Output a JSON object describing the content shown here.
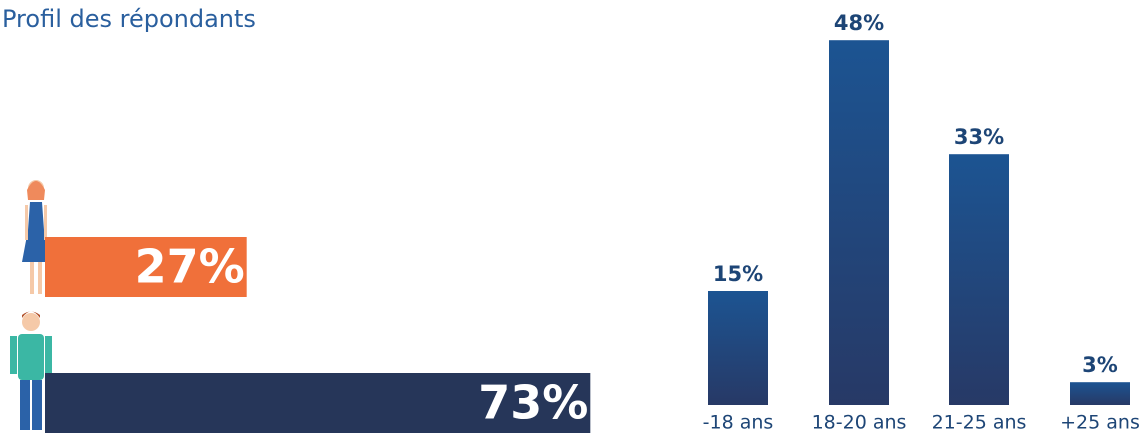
{
  "chart_data": [
    {
      "type": "hbar",
      "title": "Profil des répondants",
      "categories": [
        null,
        null
      ],
      "values": [
        27,
        73
      ],
      "value_labels": [
        "27%",
        "73%"
      ],
      "colors": [
        "#f0703a",
        "#263659"
      ]
    },
    {
      "type": "bar",
      "categories": [
        "-18 ans",
        "18-20 ans",
        "21-25 ans",
        "+25 ans"
      ],
      "values": [
        15,
        48,
        33,
        3
      ],
      "value_labels": [
        "15%",
        "48%",
        "33%",
        "3%"
      ],
      "color": "#1c5492"
    }
  ]
}
